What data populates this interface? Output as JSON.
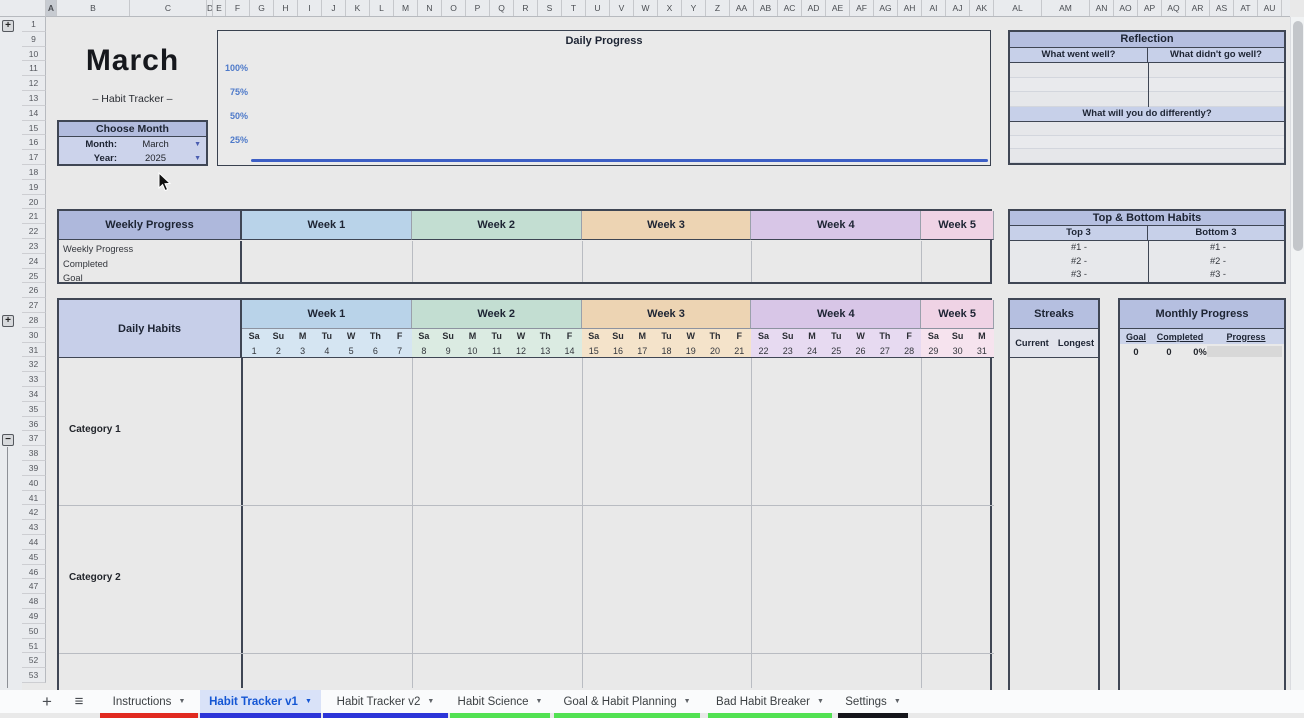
{
  "grid": {
    "columns": [
      "A",
      "B",
      "C",
      "D",
      "E",
      "F",
      "G",
      "H",
      "I",
      "J",
      "K",
      "L",
      "M",
      "N",
      "O",
      "P",
      "Q",
      "R",
      "S",
      "T",
      "U",
      "V",
      "W",
      "X",
      "Y",
      "Z",
      "AA",
      "AB",
      "AC",
      "AD",
      "AE",
      "AF",
      "AG",
      "AH",
      "AI",
      "AJ",
      "AK",
      "AL",
      "AM",
      "AN",
      "AO",
      "AP",
      "AQ",
      "AR",
      "AS",
      "AT",
      "AU"
    ],
    "selected_column": "A",
    "rows": [
      1,
      9,
      10,
      11,
      12,
      13,
      14,
      15,
      16,
      17,
      18,
      19,
      20,
      21,
      22,
      23,
      24,
      25,
      26,
      27,
      28,
      30,
      31,
      32,
      33,
      34,
      35,
      36,
      37,
      38,
      39,
      40,
      41,
      42,
      43,
      44,
      45,
      46,
      47,
      48,
      49,
      50,
      51,
      52,
      53
    ],
    "group_buttons": {
      "expand": "+",
      "collapse": "−"
    }
  },
  "title_block": {
    "month": "March",
    "subtitle": "– Habit Tracker –"
  },
  "choose_month": {
    "title": "Choose Month",
    "month_label": "Month:",
    "month_value": "March",
    "year_label": "Year:",
    "year_value": "2025",
    "dropdown_icon": "▼"
  },
  "daily_progress": {
    "title": "Daily Progress",
    "y_axis": [
      "100%",
      "75%",
      "50%",
      "25%"
    ]
  },
  "chart_data": {
    "type": "line",
    "title": "Daily Progress",
    "y_ticks": [
      "100%",
      "75%",
      "50%",
      "25%"
    ],
    "series": [
      {
        "name": "Daily Progress",
        "note": "flat line at 0% across the month"
      }
    ],
    "ylim": [
      "0%",
      "100%"
    ],
    "grid": false,
    "legend": "none"
  },
  "reflection": {
    "title": "Reflection",
    "col1": "What went well?",
    "col2": "What didn't go well?",
    "bottom": "What will you do differently?"
  },
  "weekly_progress": {
    "title": "Weekly Progress",
    "row_labels": [
      "Weekly Progress",
      "Completed",
      "Goal"
    ]
  },
  "weeks": [
    {
      "label": "Week 1",
      "color": "#b9d3e9",
      "light": "#d5e5f2",
      "days": [
        "Sa",
        "Su",
        "M",
        "Tu",
        "W",
        "Th",
        "F"
      ],
      "dates": [
        "1",
        "2",
        "3",
        "4",
        "5",
        "6",
        "7"
      ]
    },
    {
      "label": "Week 2",
      "color": "#c3ded2",
      "light": "#dbebe2",
      "days": [
        "Sa",
        "Su",
        "M",
        "Tu",
        "W",
        "Th",
        "F"
      ],
      "dates": [
        "8",
        "9",
        "10",
        "11",
        "12",
        "13",
        "14"
      ]
    },
    {
      "label": "Week 3",
      "color": "#edd4b3",
      "light": "#f4e3ca",
      "days": [
        "Sa",
        "Su",
        "M",
        "Tu",
        "W",
        "Th",
        "F"
      ],
      "dates": [
        "15",
        "16",
        "17",
        "18",
        "19",
        "20",
        "21"
      ]
    },
    {
      "label": "Week 4",
      "color": "#d8c6e7",
      "light": "#e7daf1",
      "days": [
        "Sa",
        "Su",
        "M",
        "Tu",
        "W",
        "Th",
        "F"
      ],
      "dates": [
        "22",
        "23",
        "24",
        "25",
        "26",
        "27",
        "28"
      ]
    },
    {
      "label": "Week 5",
      "color": "#efd3e5",
      "light": "#f6e3ee",
      "days": [
        "Sa",
        "Su",
        "M"
      ],
      "dates": [
        "29",
        "30",
        "31"
      ]
    }
  ],
  "top_bottom_habits": {
    "title": "Top & Bottom Habits",
    "col1": "Top 3",
    "col2": "Bottom 3",
    "rows": [
      "#1 -",
      "#2 -",
      "#3 -"
    ]
  },
  "daily_habits": {
    "title": "Daily Habits",
    "categories": [
      "Category 1",
      "Category 2"
    ]
  },
  "streaks": {
    "title": "Streaks",
    "col1": "Current",
    "col2": "Longest"
  },
  "monthly_progress": {
    "title": "Monthly Progress",
    "headers": [
      "Goal",
      "Completed",
      "Progress"
    ],
    "values": [
      "0",
      "0",
      "0%"
    ]
  },
  "tabbar": {
    "add_icon": "+",
    "all_sheets_icon": "≡",
    "caret_icon": "▼",
    "tabs": [
      {
        "label": "Instructions",
        "strip": "#e12a20",
        "active": false
      },
      {
        "label": "Habit Tracker v1",
        "strip": "#2c35d8",
        "active": true
      },
      {
        "label": "Habit Tracker v2",
        "strip": "#2c35d8",
        "active": false
      },
      {
        "label": "Habit Science",
        "strip": "#52e152",
        "active": false
      },
      {
        "label": "Goal & Habit Planning",
        "strip": "#52e152",
        "active": false
      },
      {
        "label": "Bad Habit Breaker",
        "strip": "#52e152",
        "active": false
      },
      {
        "label": "Settings",
        "strip": "#15151a",
        "active": false
      }
    ]
  },
  "colors": {
    "header_lavender": "#aeb8dc",
    "sub_lavender": "#c7d0e9",
    "panel_header": "#b5bfe0",
    "monthly_sub": "#ccd4ea",
    "streak_sub": "#e2e4ec",
    "sheet_bg": "#e9e9e9",
    "chart_axis_blue": "#4d79c9",
    "chart_line_blue": "#3d5fc5",
    "active_tab_blue": "#1456d4"
  }
}
